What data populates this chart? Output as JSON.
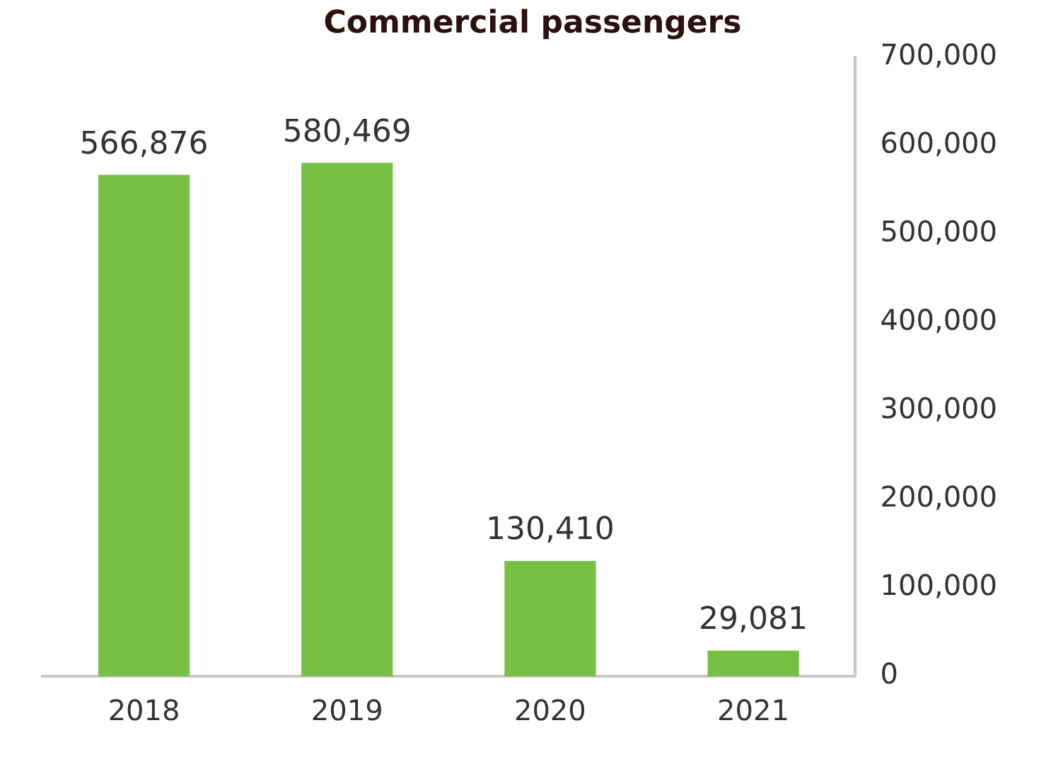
{
  "chart_data": {
    "type": "bar",
    "title": "Commercial passengers",
    "categories": [
      "2018",
      "2019",
      "2020",
      "2021"
    ],
    "values": [
      566876,
      580469,
      130410,
      29081
    ],
    "color": "#77c043",
    "value_labels": [
      "566,876",
      "580,469",
      "130,410",
      "29,081"
    ],
    "ylim": [
      0,
      700000
    ],
    "yticks": [
      0,
      {
        "value": 100000,
        "label": "100,000"
      },
      {
        "value": 200000,
        "label": "200,000"
      },
      {
        "value": 300000,
        "label": "300,000"
      },
      {
        "value": 400000,
        "label": "400,000"
      },
      {
        "value": 500000,
        "label": "500,000"
      },
      {
        "value": 600000,
        "label": "600,000"
      },
      {
        "value": 700000,
        "label": "700,000"
      }
    ],
    "grid": false,
    "legend": false
  }
}
